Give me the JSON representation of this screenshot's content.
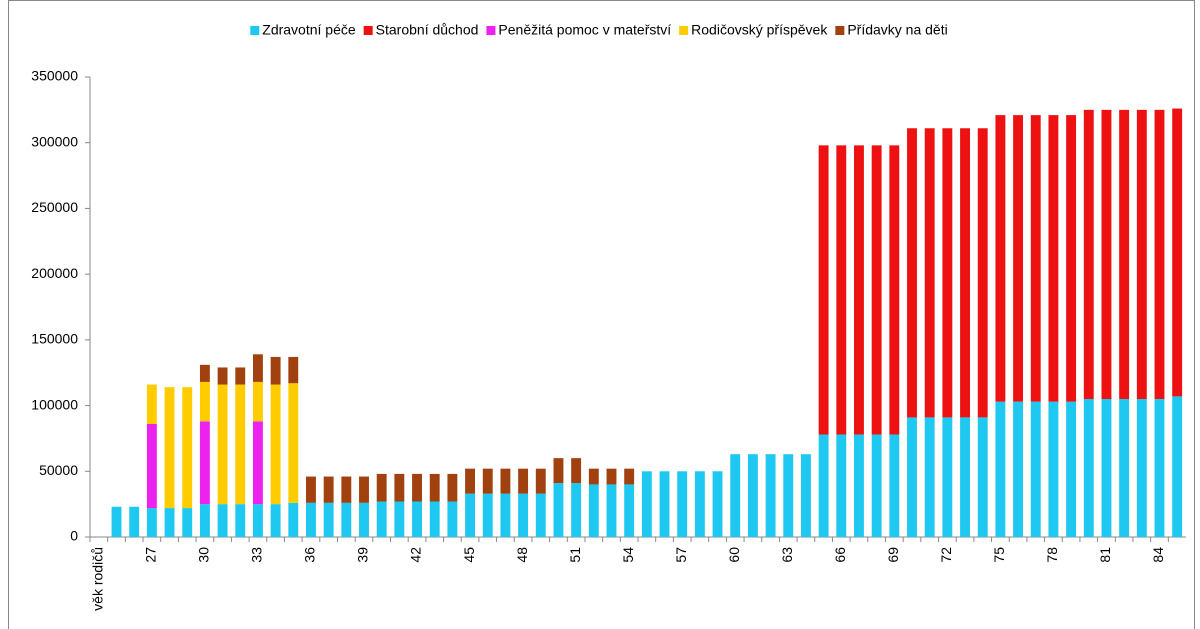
{
  "chart_data": {
    "type": "stacked_bar",
    "categories": [
      "věk rodičů",
      null,
      null,
      "27",
      null,
      null,
      "30",
      null,
      null,
      "33",
      null,
      null,
      "36",
      null,
      null,
      "39",
      null,
      null,
      "42",
      null,
      null,
      "45",
      null,
      null,
      "48",
      null,
      null,
      "51",
      null,
      null,
      "54",
      null,
      null,
      "57",
      null,
      null,
      "60",
      null,
      null,
      "63",
      null,
      null,
      "66",
      null,
      null,
      "69",
      null,
      null,
      "72",
      null,
      null,
      "75",
      null,
      null,
      "78",
      null,
      null,
      "81",
      null,
      null,
      "84",
      null
    ],
    "series": [
      {
        "name": "Zdravotní péče",
        "color": "#1ec8f0",
        "values": [
          null,
          23000,
          23000,
          22000,
          22000,
          22000,
          25000,
          25000,
          25000,
          25000,
          25000,
          26000,
          26000,
          26000,
          26000,
          26000,
          27000,
          27000,
          27000,
          27000,
          27000,
          33000,
          33000,
          33000,
          33000,
          33000,
          41000,
          41000,
          40000,
          40000,
          40000,
          50000,
          50000,
          50000,
          50000,
          50000,
          63000,
          63000,
          63000,
          63000,
          63000,
          78000,
          78000,
          78000,
          78000,
          78000,
          91000,
          91000,
          91000,
          91000,
          91000,
          103000,
          103000,
          103000,
          103000,
          103000,
          105000,
          105000,
          105000,
          105000,
          105000,
          107000
        ]
      },
      {
        "name": "Starobní důchod",
        "color": "#ee1111",
        "values": [
          null,
          null,
          null,
          null,
          null,
          null,
          null,
          null,
          null,
          null,
          null,
          null,
          null,
          null,
          null,
          null,
          null,
          null,
          null,
          null,
          null,
          null,
          null,
          null,
          null,
          null,
          null,
          null,
          null,
          null,
          null,
          null,
          null,
          null,
          null,
          null,
          null,
          null,
          null,
          null,
          null,
          220000,
          220000,
          220000,
          220000,
          220000,
          220000,
          220000,
          220000,
          220000,
          220000,
          218000,
          218000,
          218000,
          218000,
          218000,
          220000,
          220000,
          220000,
          220000,
          220000,
          219000
        ]
      },
      {
        "name": "Peněžitá pomoc v mateřství",
        "color": "#ee22ee",
        "values": [
          null,
          null,
          null,
          64000,
          null,
          null,
          63000,
          null,
          null,
          63000,
          null,
          null,
          null,
          null,
          null,
          null,
          null,
          null,
          null,
          null,
          null,
          null,
          null,
          null,
          null,
          null,
          null,
          null,
          null,
          null,
          null,
          null,
          null,
          null,
          null,
          null,
          null,
          null,
          null,
          null,
          null,
          null,
          null,
          null,
          null,
          null,
          null,
          null,
          null,
          null,
          null,
          null,
          null,
          null,
          null,
          null,
          null,
          null,
          null,
          null,
          null,
          null
        ]
      },
      {
        "name": "Rodičovský příspěvek",
        "color": "#ffcc00",
        "values": [
          null,
          null,
          null,
          30000,
          92000,
          92000,
          30000,
          91000,
          91000,
          30000,
          91000,
          91000,
          null,
          null,
          null,
          null,
          null,
          null,
          null,
          null,
          null,
          null,
          null,
          null,
          null,
          null,
          null,
          null,
          null,
          null,
          null,
          null,
          null,
          null,
          null,
          null,
          null,
          null,
          null,
          null,
          null,
          null,
          null,
          null,
          null,
          null,
          null,
          null,
          null,
          null,
          null,
          null,
          null,
          null,
          null,
          null,
          null,
          null,
          null,
          null,
          null,
          null
        ]
      },
      {
        "name": "Přídavky na děti",
        "color": "#a0410f",
        "values": [
          null,
          null,
          null,
          null,
          null,
          null,
          13000,
          13000,
          13000,
          21000,
          21000,
          20000,
          20000,
          20000,
          20000,
          20000,
          21000,
          21000,
          21000,
          21000,
          21000,
          19000,
          19000,
          19000,
          19000,
          19000,
          19000,
          19000,
          12000,
          12000,
          12000,
          null,
          null,
          null,
          null,
          null,
          null,
          null,
          null,
          null,
          null,
          null,
          null,
          null,
          null,
          null,
          null,
          null,
          null,
          null,
          null,
          null,
          null,
          null,
          null,
          null,
          null,
          null,
          null,
          null,
          null,
          null
        ]
      }
    ],
    "ylim": [
      0,
      350000
    ],
    "yticks": [
      0,
      50000,
      100000,
      150000,
      200000,
      250000,
      300000,
      350000
    ],
    "grid": false,
    "legend": "top"
  }
}
